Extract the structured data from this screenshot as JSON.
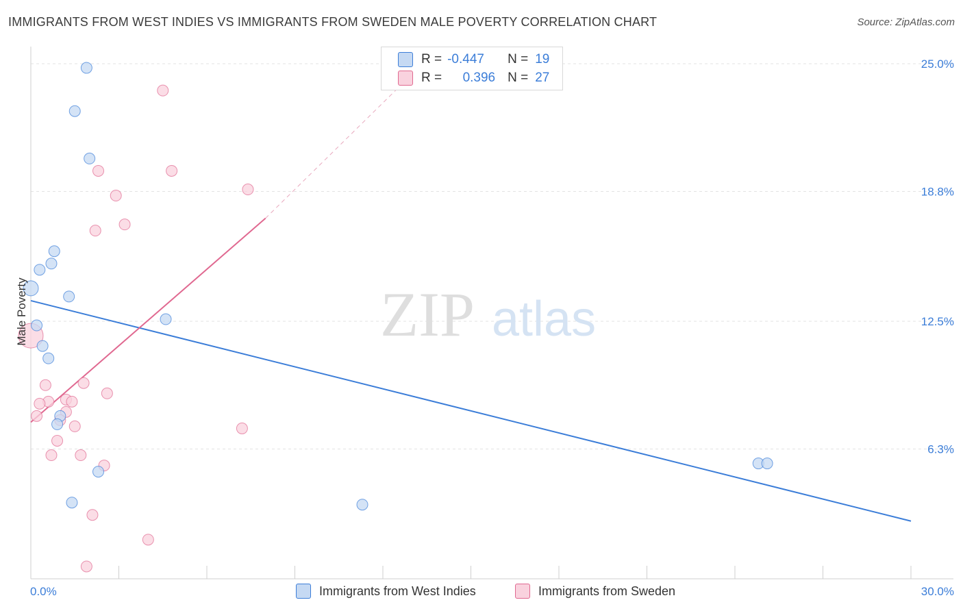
{
  "title": "IMMIGRANTS FROM WEST INDIES VS IMMIGRANTS FROM SWEDEN MALE POVERTY CORRELATION CHART",
  "source": "Source: ZipAtlas.com",
  "watermark": {
    "zip": "ZIP",
    "atlas": "atlas"
  },
  "legend": {
    "r_label": "R =",
    "n_label": "N =",
    "rows": [
      {
        "r": "-0.447",
        "n": "19",
        "color": "#a9c8f0"
      },
      {
        "r": "0.396",
        "n": "27",
        "color": "#f5b8cb"
      }
    ]
  },
  "bottom_legend": [
    "Immigrants from West Indies",
    "Immigrants from Sweden"
  ],
  "chart_data": {
    "type": "scatter",
    "title": "IMMIGRANTS FROM WEST INDIES VS IMMIGRANTS FROM SWEDEN MALE POVERTY CORRELATION CHART",
    "xlabel": "",
    "ylabel": "Male Poverty",
    "xlim": [
      0,
      30
    ],
    "ylim": [
      0,
      25.5
    ],
    "x_tick_labels": [
      "0.0%",
      "30.0%"
    ],
    "y_ticks": [
      6.3,
      12.5,
      18.8,
      25.0
    ],
    "y_tick_labels": [
      "6.3%",
      "12.5%",
      "18.8%",
      "25.0%"
    ],
    "series": [
      {
        "name": "Immigrants from West Indies",
        "color": "#3b7dd8",
        "fill": "#c5d9f3",
        "points": [
          {
            "x": 1.9,
            "y": 24.8,
            "s": 8
          },
          {
            "x": 1.5,
            "y": 22.7,
            "s": 8
          },
          {
            "x": 2.0,
            "y": 20.4,
            "s": 8
          },
          {
            "x": 0.8,
            "y": 15.9,
            "s": 8
          },
          {
            "x": 0.7,
            "y": 15.3,
            "s": 8
          },
          {
            "x": 0.3,
            "y": 15.0,
            "s": 8
          },
          {
            "x": 0.0,
            "y": 14.1,
            "s": 11
          },
          {
            "x": 1.3,
            "y": 13.7,
            "s": 8
          },
          {
            "x": 4.6,
            "y": 12.6,
            "s": 8
          },
          {
            "x": 0.2,
            "y": 12.3,
            "s": 8
          },
          {
            "x": 0.4,
            "y": 11.3,
            "s": 8
          },
          {
            "x": 0.6,
            "y": 10.7,
            "s": 8
          },
          {
            "x": 1.0,
            "y": 7.9,
            "s": 8
          },
          {
            "x": 0.9,
            "y": 7.5,
            "s": 8
          },
          {
            "x": 2.3,
            "y": 5.2,
            "s": 8
          },
          {
            "x": 1.4,
            "y": 3.7,
            "s": 8
          },
          {
            "x": 11.3,
            "y": 3.6,
            "s": 8
          },
          {
            "x": 24.8,
            "y": 5.6,
            "s": 8
          },
          {
            "x": 25.1,
            "y": 5.6,
            "s": 8
          }
        ],
        "trend": {
          "x1": 0,
          "y1": 13.5,
          "x2": 30,
          "y2": 2.8
        }
      },
      {
        "name": "Immigrants from Sweden",
        "color": "#e06890",
        "fill": "#f9d2de",
        "points": [
          {
            "x": 4.5,
            "y": 23.7,
            "s": 8
          },
          {
            "x": 2.3,
            "y": 19.8,
            "s": 8
          },
          {
            "x": 4.8,
            "y": 19.8,
            "s": 8
          },
          {
            "x": 7.4,
            "y": 18.9,
            "s": 8
          },
          {
            "x": 2.9,
            "y": 18.6,
            "s": 8
          },
          {
            "x": 3.2,
            "y": 17.2,
            "s": 8
          },
          {
            "x": 2.2,
            "y": 16.9,
            "s": 8
          },
          {
            "x": 0.0,
            "y": 11.8,
            "s": 18
          },
          {
            "x": 0.5,
            "y": 9.4,
            "s": 8
          },
          {
            "x": 1.8,
            "y": 9.5,
            "s": 8
          },
          {
            "x": 2.6,
            "y": 9.0,
            "s": 8
          },
          {
            "x": 0.6,
            "y": 8.6,
            "s": 8
          },
          {
            "x": 1.2,
            "y": 8.7,
            "s": 8
          },
          {
            "x": 1.4,
            "y": 8.6,
            "s": 8
          },
          {
            "x": 0.3,
            "y": 8.5,
            "s": 8
          },
          {
            "x": 1.2,
            "y": 8.1,
            "s": 8
          },
          {
            "x": 0.2,
            "y": 7.9,
            "s": 8
          },
          {
            "x": 1.0,
            "y": 7.7,
            "s": 8
          },
          {
            "x": 1.5,
            "y": 7.4,
            "s": 8
          },
          {
            "x": 7.2,
            "y": 7.3,
            "s": 8
          },
          {
            "x": 0.9,
            "y": 6.7,
            "s": 8
          },
          {
            "x": 0.7,
            "y": 6.0,
            "s": 8
          },
          {
            "x": 1.7,
            "y": 6.0,
            "s": 8
          },
          {
            "x": 2.5,
            "y": 5.5,
            "s": 8
          },
          {
            "x": 2.1,
            "y": 3.1,
            "s": 8
          },
          {
            "x": 4.0,
            "y": 1.9,
            "s": 8
          },
          {
            "x": 1.9,
            "y": 0.6,
            "s": 8
          }
        ],
        "trend": {
          "x1": 0,
          "y1": 7.6,
          "x2": 8.0,
          "y2": 17.5,
          "dash_x2": 13.0,
          "dash_y2": 24.5
        }
      }
    ]
  }
}
